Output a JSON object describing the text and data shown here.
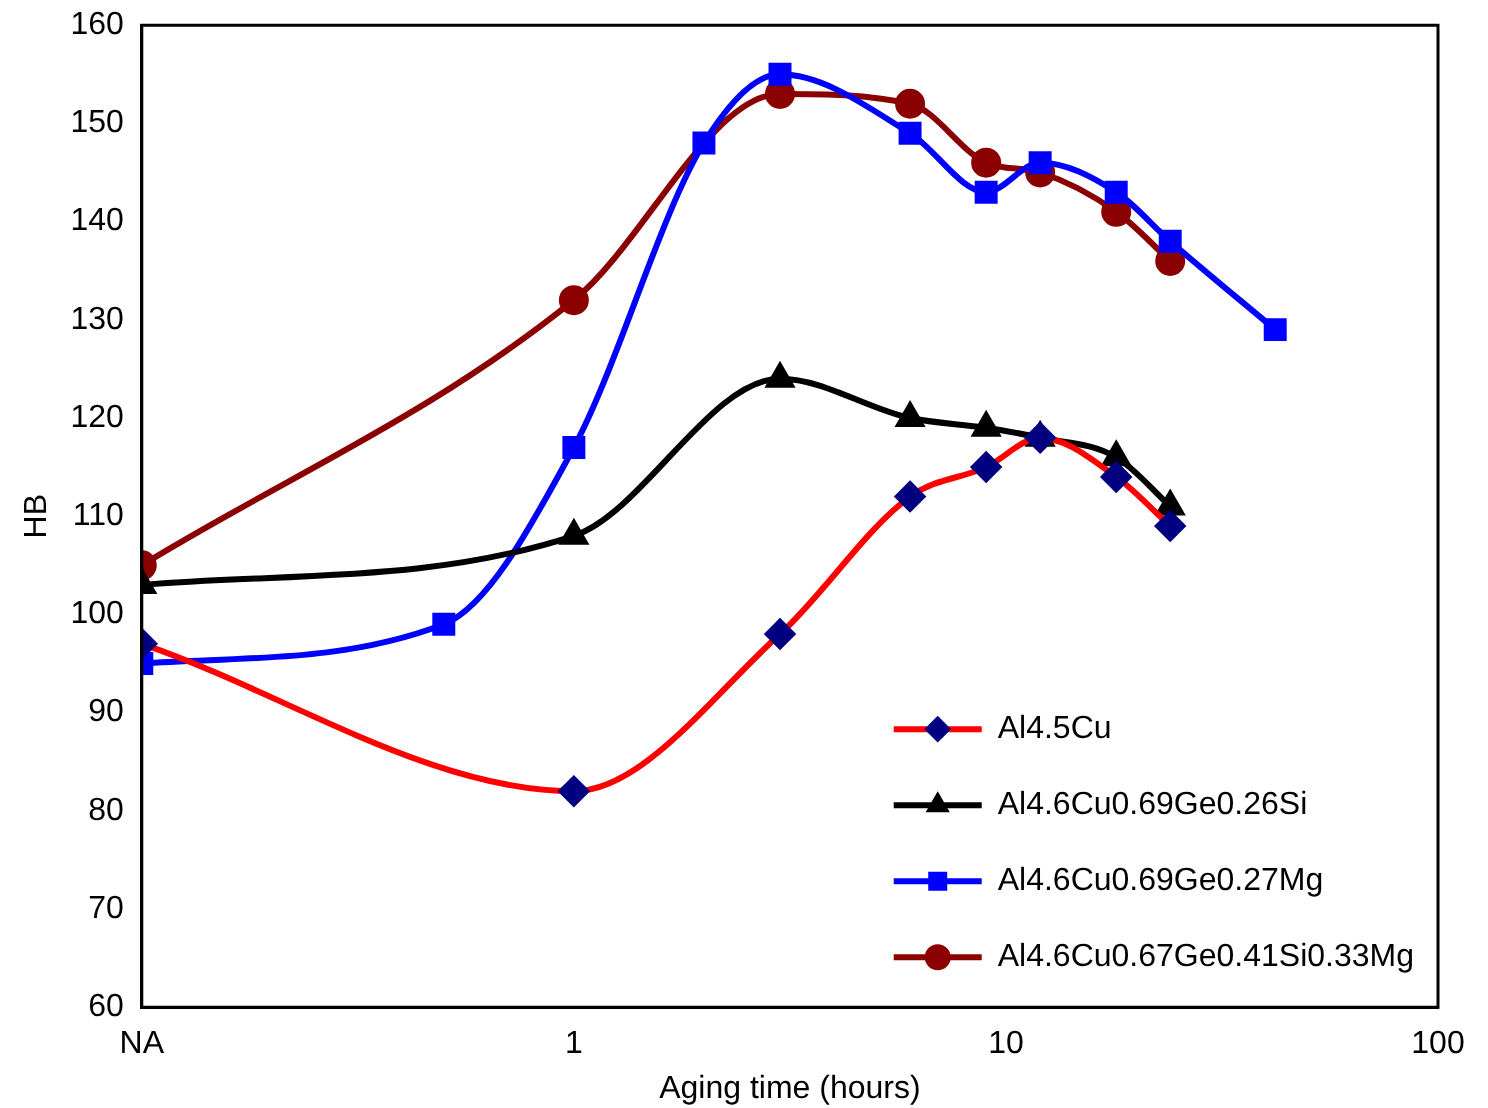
{
  "chart_data": {
    "type": "line",
    "xlabel": "Aging time (hours)",
    "ylabel": "HB",
    "log": "x",
    "xlim": [
      0.1,
      100
    ],
    "xticks": [
      {
        "value": 0.1,
        "label": "NA"
      },
      1,
      10,
      100
    ],
    "ylim": [
      60,
      160
    ],
    "yticks": [
      60,
      70,
      80,
      90,
      100,
      110,
      120,
      130,
      140,
      150,
      160
    ],
    "grid": false,
    "legend": "bottom right",
    "series": [
      {
        "name": "Al4.5Cu",
        "color": "#ff0000",
        "colors": [
          "#000080",
          "#000080",
          "#000080",
          "#000080",
          "#000080",
          "#000080",
          "#000080",
          "#000080"
        ],
        "marker": "diamond",
        "x": [
          0.1,
          1,
          3,
          6,
          9,
          12,
          18,
          24
        ],
        "values": [
          97,
          82,
          98,
          112,
          115,
          118,
          114,
          109
        ]
      },
      {
        "name": "Al4.6Cu0.69Ge0.26Si",
        "color": "#000000",
        "marker": "triangle",
        "x": [
          0.1,
          1,
          3,
          6,
          9,
          12,
          18,
          24
        ],
        "values": [
          103,
          108,
          124,
          120,
          119,
          118,
          116,
          111
        ]
      },
      {
        "name": "Al4.6Cu0.69Ge0.27Mg",
        "color": "#0000ff",
        "marker": "square",
        "x": [
          0.1,
          0.5,
          1,
          2,
          3,
          6,
          9,
          12,
          18,
          24,
          42
        ],
        "values": [
          95,
          99,
          117,
          148,
          155,
          149,
          143,
          146,
          143,
          138,
          129
        ]
      },
      {
        "name": "Al4.6Cu0.67Ge0.41Si0.33Mg",
        "color": "#8b0000",
        "marker": "circle",
        "x": [
          0.1,
          1,
          3,
          6,
          9,
          12,
          18,
          24
        ],
        "values": [
          105,
          132,
          153,
          152,
          146,
          145,
          141,
          136
        ]
      }
    ]
  }
}
